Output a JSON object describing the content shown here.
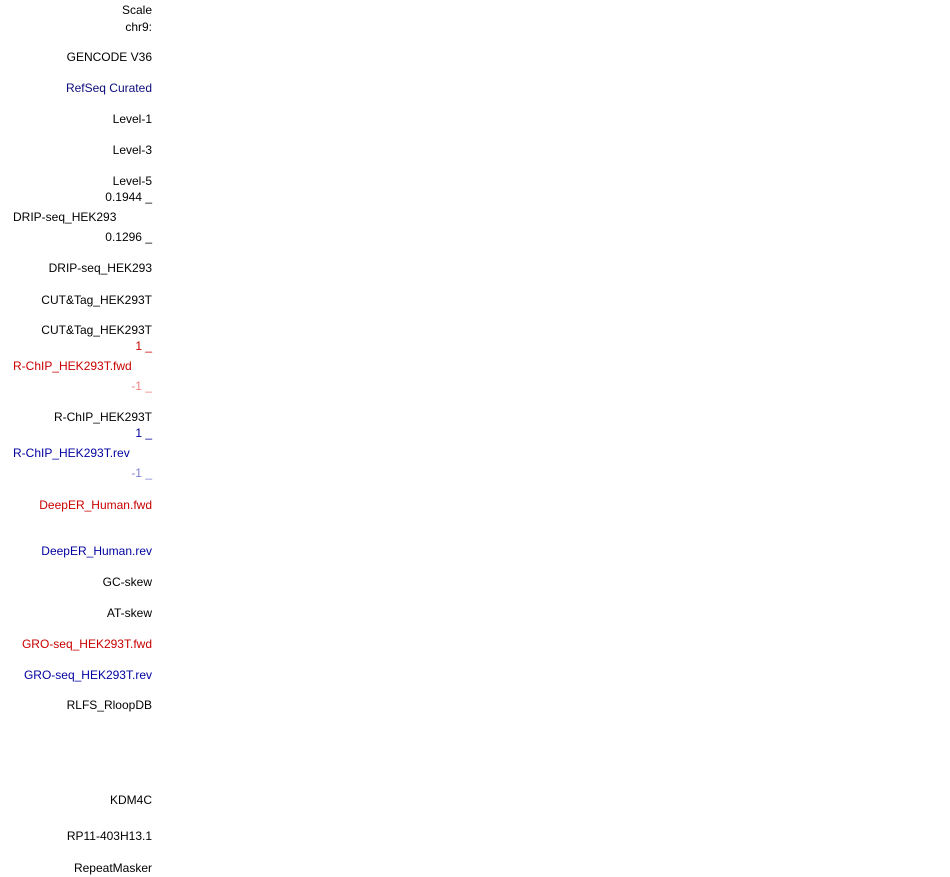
{
  "track_labels": [
    {
      "text": "Scale",
      "color": "#000000"
    },
    {
      "text": "chr9:",
      "color": "#000000"
    },
    {
      "text": "GENCODE V36",
      "color": "#000000"
    },
    {
      "text": "RefSeq Curated",
      "color": "#0c0c78"
    },
    {
      "text": "Level-1",
      "color": "#000000"
    },
    {
      "text": "Level-3",
      "color": "#000000"
    },
    {
      "text": "Level-5",
      "color": "#000000"
    },
    {
      "text": "0.1944 _",
      "color": "#000000"
    },
    {
      "text": "DRIP-seq_HEK293",
      "color": "#000000"
    },
    {
      "text": "0.1296 _",
      "color": "#000000"
    },
    {
      "text": "DRIP-seq_HEK293",
      "color": "#000000"
    },
    {
      "text": "CUT&Tag_HEK293T",
      "color": "#000000"
    },
    {
      "text": "CUT&Tag_HEK293T",
      "color": "#000000"
    },
    {
      "text": "1 _",
      "color": "#c80000"
    },
    {
      "text": "R-ChIP_HEK293T.fwd",
      "color": "#c80000"
    },
    {
      "text": "-1 _",
      "color": "#f07f7f"
    },
    {
      "text": "R-ChIP_HEK293T",
      "color": "#000000"
    },
    {
      "text": "1 _",
      "color": "#0000a0"
    },
    {
      "text": "R-ChIP_HEK293T.rev",
      "color": "#0000a0"
    },
    {
      "text": "-1 _",
      "color": "#7f7fcf"
    },
    {
      "text": "DeepER_Human.fwd",
      "color": "#c80000"
    },
    {
      "text": "DeepER_Human.rev",
      "color": "#0000a0"
    },
    {
      "text": "GC-skew",
      "color": "#000000"
    },
    {
      "text": "AT-skew",
      "color": "#000000"
    },
    {
      "text": "GRO-seq_HEK293T.fwd",
      "color": "#c80000"
    },
    {
      "text": "GRO-seq_HEK293T.rev",
      "color": "#0000a0"
    },
    {
      "text": "RLFS_RloopDB",
      "color": "#000000"
    },
    {
      "text": "KDM4C",
      "color": "#000000"
    },
    {
      "text": "RP11-403H13.1",
      "color": "#000000"
    },
    {
      "text": "RepeatMasker",
      "color": "#000000"
    }
  ]
}
